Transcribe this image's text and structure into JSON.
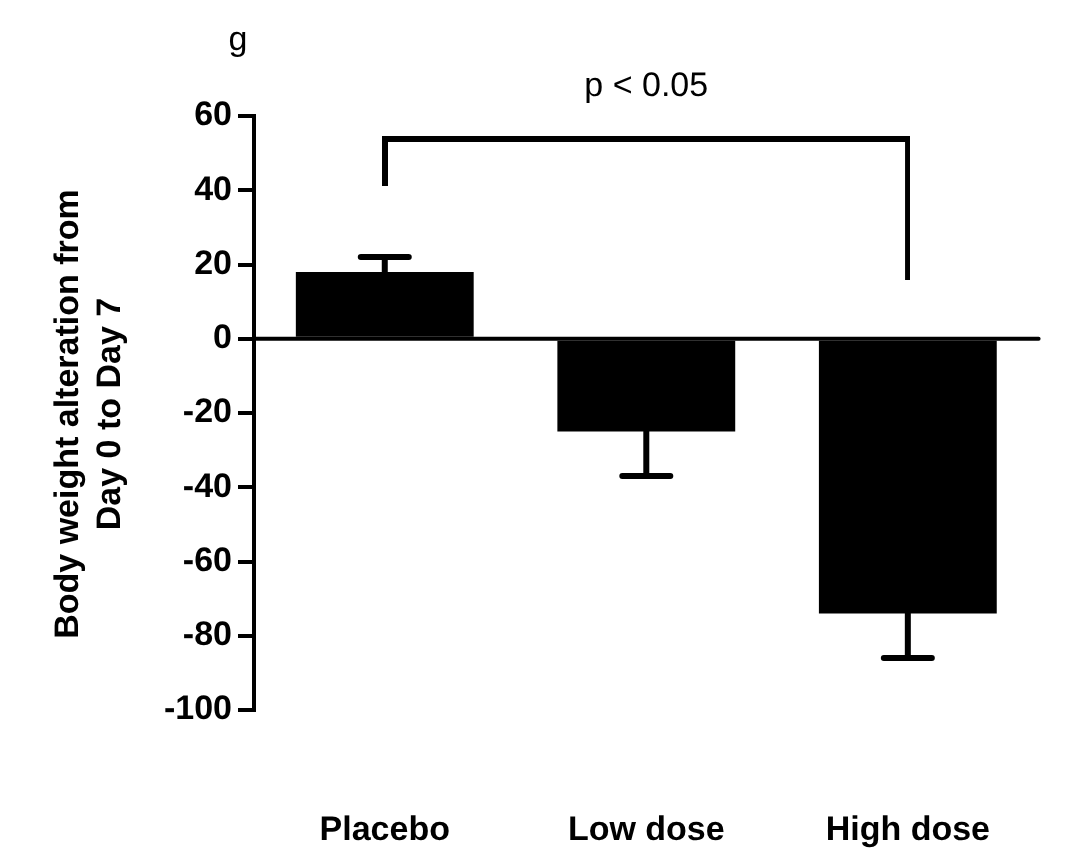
{
  "chart_data": {
    "type": "bar",
    "ylabel": "Body weight alteration from Day 0 to Day 7",
    "categories": [
      "Placebo",
      "Low dose",
      "High dose"
    ],
    "values": [
      18,
      -25,
      -74
    ],
    "color": "#000000",
    "errors": [
      [
        18,
        22
      ],
      [
        -37,
        -25
      ],
      [
        -86,
        -74
      ]
    ],
    "ylim": [
      -100,
      60
    ],
    "yticks": [
      -100,
      -80,
      -60,
      -40,
      -20,
      0,
      20,
      40,
      60
    ],
    "grid": false,
    "ref_lines": [
      {
        "axis": "y",
        "value": 0,
        "color": "#000000"
      }
    ],
    "annotations": [
      "g",
      "p < 0.05"
    ]
  }
}
